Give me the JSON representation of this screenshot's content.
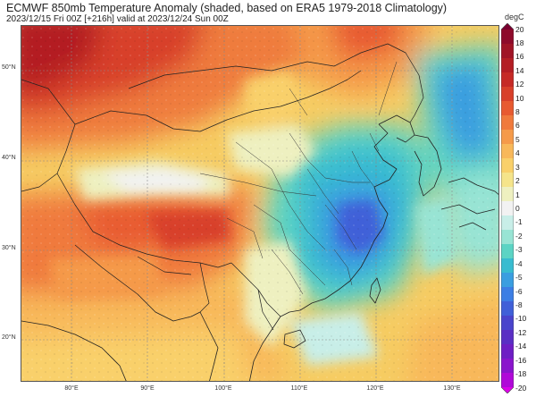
{
  "header": {
    "title": "ECMWF 850mb Temperature Anomaly (shaded, based on ERA5 1979-2018 Climatology)",
    "subtitle": "2023/12/15 Fri 00Z [+216h] valid at 2023/12/24 Sun 00Z"
  },
  "map": {
    "lat_labels": [
      "50°N",
      "40°N",
      "30°N",
      "20°N"
    ],
    "lon_labels": [
      "80°E",
      "90°E",
      "100°E",
      "110°E",
      "120°E",
      "130°E"
    ]
  },
  "colorbar": {
    "unit": "degC",
    "levels": [
      20,
      18,
      16,
      14,
      12,
      10,
      8,
      6,
      5,
      4,
      3,
      2,
      1,
      0,
      -1,
      -2,
      -3,
      -4,
      -5,
      -6,
      -8,
      -10,
      -12,
      -14,
      -16,
      -18,
      -20
    ],
    "labels": [
      "20",
      "18",
      "16",
      "14",
      "12",
      "10",
      "8",
      "6",
      "5",
      "4",
      "3",
      "2",
      "1",
      "0",
      "-1",
      "-2",
      "-3",
      "-4",
      "-5",
      "-6",
      "-8",
      "-10",
      "-12",
      "-14",
      "-16",
      "-18",
      "-20"
    ],
    "colors": [
      "#7a0030",
      "#8e0a2a",
      "#a01426",
      "#b41e24",
      "#c62a26",
      "#d8402a",
      "#e85a30",
      "#f07a3c",
      "#f59a4a",
      "#f8b85a",
      "#f9d06a",
      "#f5e48a",
      "#eef0c0",
      "#f2f2f2",
      "#c8eee8",
      "#98e4d4",
      "#5cd4c4",
      "#38bcd0",
      "#3a9ee0",
      "#3c7ee4",
      "#4060d8",
      "#4a44cc",
      "#5a2ec4",
      "#6e1ec4",
      "#8a14cc",
      "#b008d8",
      "#dc00e8"
    ]
  }
}
